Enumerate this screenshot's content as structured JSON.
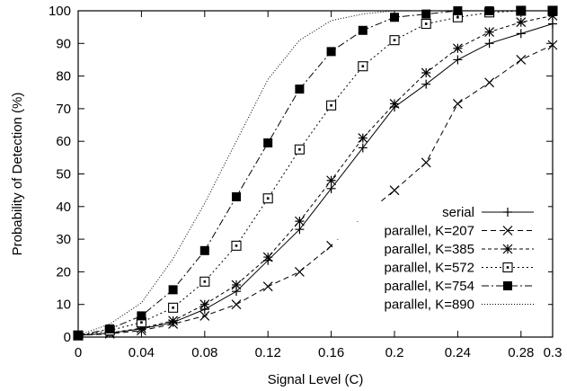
{
  "chart_data": {
    "type": "line",
    "xlabel": "Signal Level (C)",
    "ylabel": "Probability of Detection (%)",
    "xlim": [
      0,
      0.3
    ],
    "ylim": [
      0,
      100
    ],
    "xticks": [
      0,
      0.04,
      0.08,
      0.12,
      0.16,
      0.2,
      0.24,
      0.28,
      0.3
    ],
    "xtick_labels": [
      "0",
      "0.04",
      "0.08",
      "0.12",
      "0.16",
      "0.2",
      "0.24",
      "0.28",
      "0.3"
    ],
    "yticks": [
      0,
      10,
      20,
      30,
      40,
      50,
      60,
      70,
      80,
      90,
      100
    ],
    "ytick_labels": [
      "0",
      "10",
      "20",
      "30",
      "40",
      "50",
      "60",
      "70",
      "80",
      "90",
      "100"
    ],
    "legend_position": "bottom-right",
    "grid": false,
    "series": [
      {
        "name": "serial",
        "marker": "plus",
        "dash": "solid",
        "x": [
          0,
          0.02,
          0.04,
          0.06,
          0.08,
          0.1,
          0.12,
          0.14,
          0.16,
          0.18,
          0.2,
          0.22,
          0.24,
          0.26,
          0.28,
          0.3
        ],
        "y": [
          0.5,
          1.2,
          2.5,
          4.5,
          8.5,
          14,
          23.5,
          33,
          45.5,
          58,
          70.5,
          77.5,
          85,
          90,
          93,
          96
        ]
      },
      {
        "name": "parallel, K=207",
        "marker": "cross",
        "dash": "dashed",
        "x": [
          0,
          0.02,
          0.04,
          0.06,
          0.08,
          0.1,
          0.12,
          0.14,
          0.16,
          0.18,
          0.2,
          0.22,
          0.24,
          0.26,
          0.28,
          0.3
        ],
        "y": [
          0.5,
          1.0,
          2.0,
          4.0,
          6.5,
          10,
          15.5,
          20,
          28,
          37,
          45,
          53.5,
          71.5,
          78,
          85,
          89.5
        ]
      },
      {
        "name": "parallel, K=385",
        "marker": "star",
        "dash": "short-dash",
        "x": [
          0,
          0.02,
          0.04,
          0.06,
          0.08,
          0.1,
          0.12,
          0.14,
          0.16,
          0.18,
          0.2,
          0.22,
          0.24,
          0.26,
          0.28,
          0.3
        ],
        "y": [
          0.5,
          1.3,
          2.7,
          5.0,
          10,
          16,
          24.5,
          35.5,
          48,
          61,
          71.5,
          81,
          88.5,
          93.5,
          96.5,
          98.5
        ]
      },
      {
        "name": "parallel, K=572",
        "marker": "box-dot",
        "dash": "dotted",
        "x": [
          0,
          0.02,
          0.04,
          0.06,
          0.08,
          0.1,
          0.12,
          0.14,
          0.16,
          0.18,
          0.2,
          0.22,
          0.24,
          0.26,
          0.28,
          0.3
        ],
        "y": [
          0.5,
          2.0,
          4.5,
          9.0,
          17,
          28,
          42.5,
          57.5,
          71,
          83,
          91,
          96,
          98,
          99.5,
          100,
          100
        ]
      },
      {
        "name": "parallel, K=754",
        "marker": "filled-box",
        "dash": "dash-dot",
        "x": [
          0,
          0.02,
          0.04,
          0.06,
          0.08,
          0.1,
          0.12,
          0.14,
          0.16,
          0.18,
          0.2,
          0.22,
          0.24,
          0.26,
          0.28,
          0.3
        ],
        "y": [
          0.5,
          2.5,
          6.5,
          14.5,
          26.5,
          43,
          59.5,
          76,
          87.5,
          94,
          98,
          99,
          100,
          100,
          100,
          100
        ]
      },
      {
        "name": "parallel, K=890",
        "marker": "none",
        "dash": "fine-dotted",
        "x": [
          0,
          0.02,
          0.04,
          0.06,
          0.08,
          0.1,
          0.12,
          0.14,
          0.16,
          0.18,
          0.2,
          0.22,
          0.24,
          0.26,
          0.28,
          0.3
        ],
        "y": [
          0.5,
          4.0,
          10.5,
          24,
          41,
          60,
          79,
          91,
          97,
          99,
          100,
          100,
          100,
          100,
          100,
          100
        ]
      }
    ]
  }
}
